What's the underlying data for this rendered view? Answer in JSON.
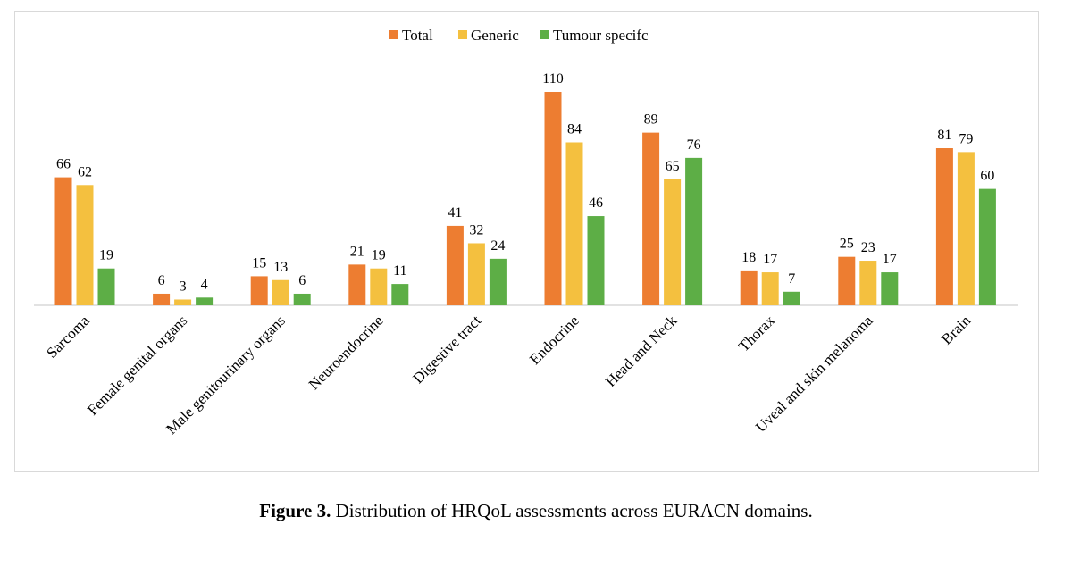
{
  "chart_data": {
    "type": "bar",
    "categories": [
      "Sarcoma",
      "Female genital organs",
      "Male genitourinary organs",
      "Neuroendocrine",
      "Digestive tract",
      "Endocrine",
      "Head and Neck",
      "Thorax",
      "Uveal and skin melanoma",
      "Brain"
    ],
    "series": [
      {
        "name": "Total",
        "color": "#ed7d31",
        "values": [
          66,
          6,
          15,
          21,
          41,
          110,
          89,
          18,
          25,
          81
        ]
      },
      {
        "name": "Generic",
        "color": "#f4c03f",
        "values": [
          62,
          3,
          13,
          19,
          32,
          84,
          65,
          17,
          23,
          79
        ]
      },
      {
        "name": "Tumour specifc",
        "color": "#5dae46",
        "values": [
          19,
          4,
          6,
          11,
          24,
          46,
          76,
          7,
          17,
          60
        ]
      }
    ],
    "ylim": [
      0,
      110
    ],
    "legend": "top-center",
    "grid": false,
    "data_labels": true
  },
  "caption": {
    "label": "Figure 3.",
    "text": " Distribution of HRQoL assessments across EURACN domains."
  }
}
